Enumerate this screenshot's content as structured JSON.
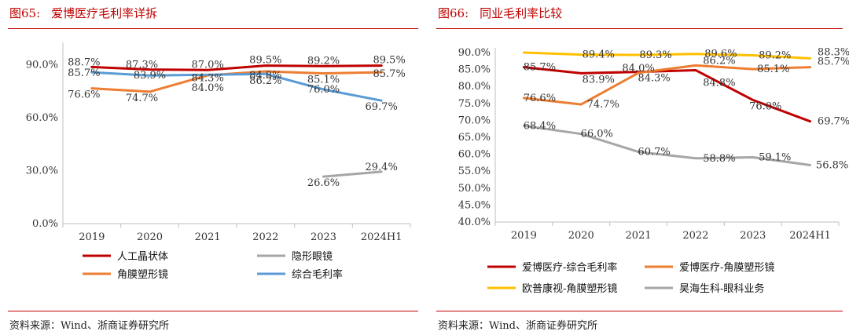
{
  "left": {
    "fig_num": "图65:",
    "title": "爱博医疗毛利率详拆",
    "source": "资料来源：Wind、浙商证券研究所"
  },
  "right": {
    "fig_num": "图66:",
    "title": "同业毛利率比较",
    "source": "资料来源：Wind、浙商证券研究所"
  },
  "chart_data": [
    {
      "type": "line",
      "categories": [
        "2019",
        "2020",
        "2021",
        "2022",
        "2023",
        "2024H1"
      ],
      "y_ticks": [
        "0.0%",
        "30.0%",
        "60.0%",
        "90.0%"
      ],
      "ylim": [
        0,
        100
      ],
      "legend_position": "bottom",
      "series": [
        {
          "name": "人工晶状体",
          "color": "#c00000",
          "values": [
            88.7,
            87.3,
            87.0,
            89.5,
            89.2,
            89.5
          ],
          "labels": [
            "88.7%",
            "87.3%",
            "87.0%",
            "89.5%",
            "89.2%",
            "89.5%"
          ]
        },
        {
          "name": "隐形眼镜",
          "color": "#a6a6a6",
          "values": [
            null,
            null,
            null,
            null,
            26.6,
            29.4
          ],
          "labels": [
            "",
            "",
            "",
            "",
            "26.6%",
            "29.4%"
          ]
        },
        {
          "name": "角膜塑形镜",
          "color": "#ed7d31",
          "values": [
            76.6,
            74.7,
            84.0,
            86.2,
            85.1,
            85.7
          ],
          "labels": [
            "76.6%",
            "74.7%",
            "84.0%",
            "86.2%",
            "85.1%",
            "85.7%"
          ]
        },
        {
          "name": "综合毛利率",
          "color": "#5b9bd5",
          "values": [
            85.7,
            83.9,
            84.3,
            84.8,
            76.0,
            69.7
          ],
          "labels": [
            "85.7%",
            "83.9%",
            "84.3%",
            "84.8%",
            "76.0%",
            "69.7%"
          ]
        }
      ]
    },
    {
      "type": "line",
      "categories": [
        "2019",
        "2020",
        "2021",
        "2022",
        "2023",
        "2024H1"
      ],
      "y_ticks": [
        "40.0%",
        "45.0%",
        "50.0%",
        "55.0%",
        "60.0%",
        "65.0%",
        "70.0%",
        "75.0%",
        "80.0%",
        "85.0%",
        "90.0%"
      ],
      "ylim": [
        40,
        90
      ],
      "legend_position": "bottom",
      "series": [
        {
          "name": "爱博医疗-综合毛利率",
          "color": "#c00000",
          "values": [
            85.7,
            83.9,
            84.3,
            84.8,
            76.0,
            69.7
          ],
          "labels": [
            "85.7%",
            "83.9%",
            "84.3%",
            "84.8%",
            "76.0%",
            "69.7%"
          ]
        },
        {
          "name": "爱博医疗-角膜塑形镜",
          "color": "#ed7d31",
          "values": [
            76.6,
            74.7,
            84.0,
            86.2,
            85.1,
            85.7
          ],
          "labels": [
            "76.6%",
            "74.7%",
            "84.0%",
            "86.2%",
            "85.1%",
            "85.7%"
          ]
        },
        {
          "name": "欧普康视-角膜塑形镜",
          "color": "#ffc000",
          "values": [
            90.0,
            89.4,
            89.3,
            89.6,
            89.2,
            88.3
          ],
          "labels": [
            "",
            "89.4%",
            "89.3%",
            "89.6%",
            "89.2%",
            "88.3%"
          ]
        },
        {
          "name": "昊海生科-眼科业务",
          "color": "#a6a6a6",
          "values": [
            68.4,
            66.0,
            60.7,
            58.8,
            59.1,
            56.8
          ],
          "labels": [
            "68.4%",
            "66.0%",
            "60.7%",
            "58.8%",
            "59.1%",
            "56.8%"
          ]
        }
      ]
    }
  ]
}
